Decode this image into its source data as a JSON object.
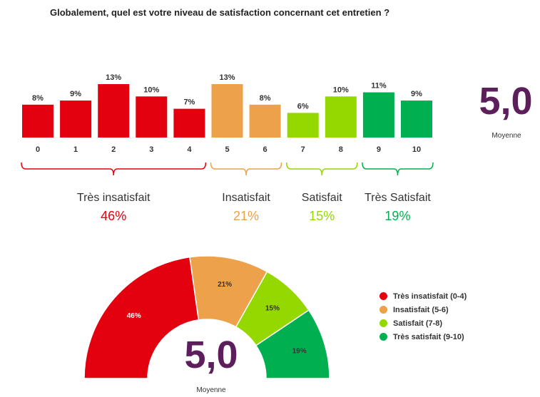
{
  "title": "Globalement, quel est votre niveau de satisfaction concernant cet entretien ?",
  "average": {
    "value": "5,0",
    "label": "Moyenne"
  },
  "chart_data": [
    {
      "type": "bar",
      "categories": [
        "0",
        "1",
        "2",
        "3",
        "4",
        "5",
        "6",
        "7",
        "8",
        "9",
        "10"
      ],
      "values": [
        8,
        9,
        13,
        10,
        7,
        13,
        8,
        6,
        10,
        11,
        9
      ],
      "value_labels": [
        "8%",
        "9%",
        "13%",
        "10%",
        "7%",
        "13%",
        "8%",
        "6%",
        "10%",
        "11%",
        "9%"
      ],
      "bar_colors": [
        "#e3000f",
        "#e3000f",
        "#e3000f",
        "#e3000f",
        "#e3000f",
        "#eca14a",
        "#eca14a",
        "#94d800",
        "#94d800",
        "#00b050",
        "#00b050"
      ],
      "ylim": [
        0,
        13
      ],
      "groups": [
        {
          "label": "Très insatisfait",
          "percent": "46%",
          "from": 0,
          "to": 4,
          "color": "#e3000f"
        },
        {
          "label": "Insatisfait",
          "percent": "21%",
          "from": 5,
          "to": 6,
          "color": "#eca14a"
        },
        {
          "label": "Satisfait",
          "percent": "15%",
          "from": 7,
          "to": 8,
          "color": "#94d800"
        },
        {
          "label": "Très Satisfait",
          "percent": "19%",
          "from": 9,
          "to": 10,
          "color": "#00b050"
        }
      ]
    },
    {
      "type": "pie",
      "style": "half-donut",
      "categories": [
        "Très insatisfait (0-4)",
        "Insatisfait (5-6)",
        "Satisfait (7-8)",
        "Très satisfait (9-10)"
      ],
      "values": [
        46,
        21,
        15,
        19
      ],
      "labels": [
        "46%",
        "21%",
        "15%",
        "19%"
      ],
      "colors": [
        "#e3000f",
        "#eca14a",
        "#94d800",
        "#00b050"
      ],
      "label_colors": [
        "#ffffff",
        "#333333",
        "#333333",
        "#333333"
      ]
    }
  ]
}
